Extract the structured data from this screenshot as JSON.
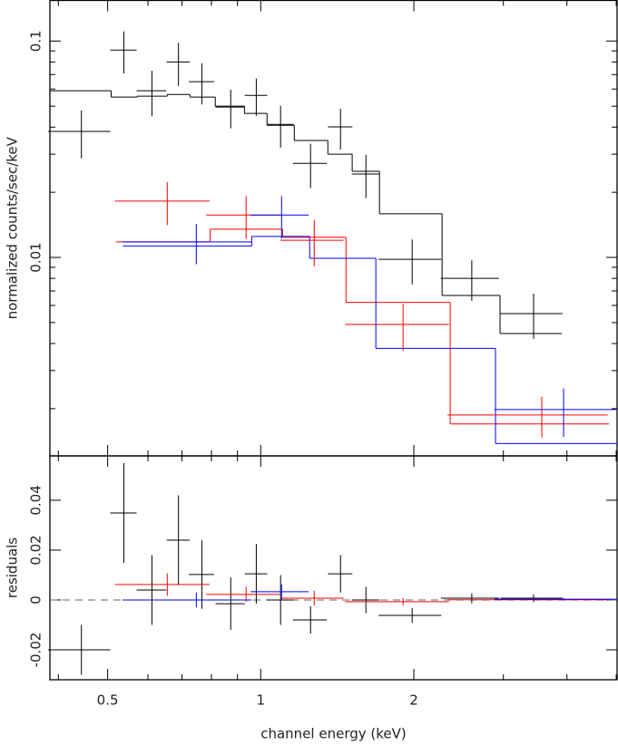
{
  "chart_data": [
    {
      "type": "errorbar",
      "ylabel": "normalized counts/sec/keV",
      "xscale": "log",
      "yscale": "log",
      "xlim": [
        0.385,
        5.02
      ],
      "ylim": [
        0.00121,
        0.154
      ],
      "yticks": [
        0.01,
        0.1
      ],
      "yminorticks": [
        0.002,
        0.003,
        0.004,
        0.005,
        0.006,
        0.007,
        0.008,
        0.009,
        0.02,
        0.03,
        0.04,
        0.05,
        0.06,
        0.07,
        0.08,
        0.09
      ],
      "series": [
        {
          "color": "#000000",
          "x": [
            0.444,
            0.538,
            0.611,
            0.689,
            0.766,
            0.873,
            0.98,
            1.094,
            1.253,
            1.435,
            1.61,
            1.985,
            2.6,
            3.44
          ],
          "xerr": [
            0.062,
            0.032,
            0.041,
            0.036,
            0.044,
            0.058,
            0.05,
            0.067,
            0.096,
            0.079,
            0.1,
            0.28,
            0.34,
            0.48
          ],
          "y": [
            0.0382,
            0.0908,
            0.0589,
            0.08,
            0.0649,
            0.0495,
            0.0561,
            0.0412,
            0.0272,
            0.0401,
            0.0243,
            0.0098,
            0.008,
            0.0055
          ],
          "yerr": [
            0.0095,
            0.02,
            0.014,
            0.018,
            0.014,
            0.01,
            0.011,
            0.009,
            0.0063,
            0.0086,
            0.0055,
            0.0023,
            0.0017,
            0.0013
          ]
        },
        {
          "color": "#ff0000",
          "x": [
            0.655,
            0.936,
            1.274,
            1.905,
            3.57
          ],
          "xerr": [
            0.138,
            0.155,
            0.18,
            0.44,
            1.24
          ],
          "y": [
            0.0182,
            0.0157,
            0.012,
            0.0049,
            0.00187
          ],
          "yerr": [
            0.0041,
            0.0035,
            0.0029,
            0.0012,
            0.0004
          ]
        },
        {
          "color": "#0000ff",
          "x": [
            0.747,
            1.099,
            3.94
          ],
          "xerr": [
            0.212,
            0.144,
            1.06
          ],
          "y": [
            0.0118,
            0.0157,
            0.00198
          ],
          "yerr": [
            0.0025,
            0.0035,
            0.0005
          ]
        }
      ],
      "models": [
        {
          "color": "#000000",
          "bins": [
            0.385,
            0.508,
            0.572,
            0.655,
            0.726,
            0.814,
            0.929,
            1.029,
            1.164,
            1.355,
            1.513,
            1.712,
            2.273,
            2.955,
            3.91
          ],
          "values": [
            0.0589,
            0.0551,
            0.0556,
            0.0566,
            0.0551,
            0.05,
            0.0463,
            0.0408,
            0.0347,
            0.03,
            0.025,
            0.0159,
            0.00667,
            0.00445
          ]
        },
        {
          "color": "#ff0000",
          "bins": [
            0.519,
            0.795,
            1.104,
            1.471,
            2.358,
            4.84
          ],
          "values": [
            0.0118,
            0.0135,
            0.0124,
            0.0062,
            0.0017
          ]
        },
        {
          "color": "#0000ff",
          "bins": [
            0.536,
            0.96,
            1.248,
            1.684,
            2.895,
            5.02
          ],
          "values": [
            0.0113,
            0.0125,
            0.0099,
            0.0038,
            0.00138
          ]
        }
      ]
    },
    {
      "type": "errorbar",
      "ylabel": "residuals",
      "xlabel": "channel energy (keV)",
      "xscale": "log",
      "yscale": "linear",
      "xlim": [
        0.385,
        5.02
      ],
      "ylim": [
        -0.032,
        0.0578
      ],
      "xticks": [
        0.5,
        1,
        2
      ],
      "xminorticks": [
        0.4,
        0.6,
        0.7,
        0.8,
        0.9,
        3,
        4,
        5
      ],
      "yticks": [
        -0.02,
        0,
        0.02,
        0.04
      ],
      "hline": 0,
      "series": [
        {
          "color": "#000000",
          "x": [
            0.444,
            0.538,
            0.611,
            0.689,
            0.766,
            0.873,
            0.98,
            1.094,
            1.253,
            1.435,
            1.61,
            1.985,
            2.6,
            3.44
          ],
          "xerr": [
            0.062,
            0.032,
            0.041,
            0.036,
            0.044,
            0.058,
            0.05,
            0.067,
            0.096,
            0.079,
            0.1,
            0.28,
            0.34,
            0.48
          ],
          "y": [
            -0.02,
            0.0349,
            0.004,
            0.024,
            0.0102,
            -0.0015,
            0.0105,
            0,
            -0.008,
            0.0105,
            0,
            -0.0062,
            0.0007,
            0.0007
          ],
          "yerr": [
            0.01,
            0.02,
            0.014,
            0.018,
            0.0137,
            0.0105,
            0.012,
            0.01,
            0.0055,
            0.0075,
            0.0053,
            0.003,
            0.002,
            0.0015
          ]
        },
        {
          "color": "#ff0000",
          "x": [
            0.655,
            0.936,
            1.274,
            1.905,
            3.57
          ],
          "xerr": [
            0.138,
            0.155,
            0.18,
            0.44,
            1.24
          ],
          "y": [
            0.0062,
            0.0022,
            0.0007,
            -0.0007,
            0.0001
          ],
          "yerr": [
            0.0045,
            0.003,
            0.003,
            0.0015,
            0.0003
          ]
        },
        {
          "color": "#0000ff",
          "x": [
            0.747,
            1.099,
            3.94
          ],
          "xerr": [
            0.212,
            0.144,
            1.06
          ],
          "y": [
            0,
            0.0033,
            0.0003
          ],
          "yerr": [
            0.003,
            0.003,
            0.0005
          ]
        }
      ]
    }
  ]
}
